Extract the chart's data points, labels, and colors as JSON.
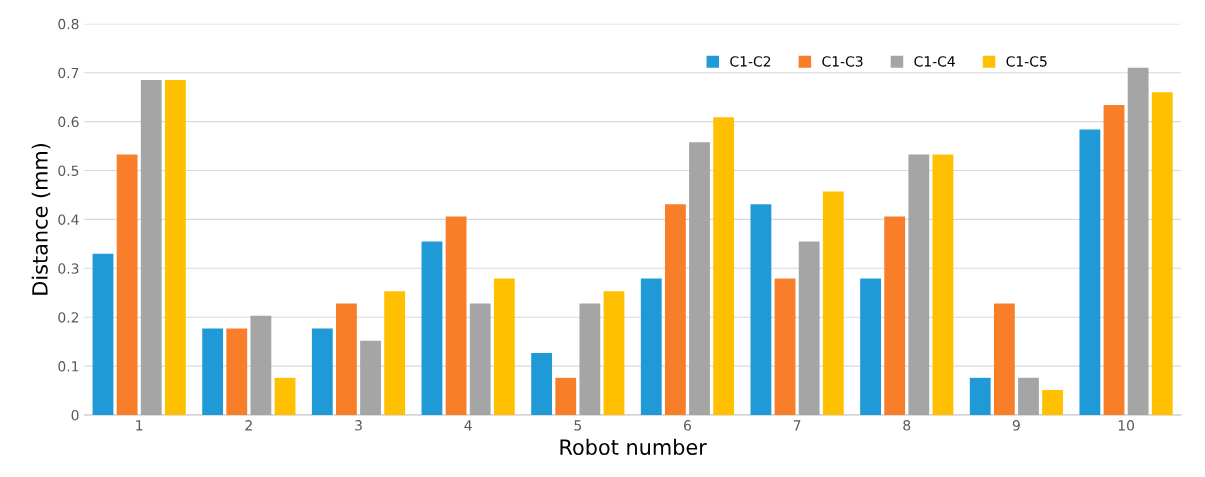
{
  "chart_data": {
    "type": "bar",
    "xlabel": "Robot number",
    "ylabel": "Distance (mm)",
    "categories": [
      "1",
      "2",
      "3",
      "4",
      "5",
      "6",
      "7",
      "8",
      "9",
      "10"
    ],
    "series": [
      {
        "name": "C1-C2",
        "color": "#1f9ad6",
        "values": [
          0.33,
          0.177,
          0.177,
          0.355,
          0.127,
          0.279,
          0.431,
          0.279,
          0.076,
          0.584
        ]
      },
      {
        "name": "C1-C3",
        "color": "#f97e2a",
        "values": [
          0.533,
          0.177,
          0.228,
          0.406,
          0.076,
          0.431,
          0.279,
          0.406,
          0.228,
          0.634
        ]
      },
      {
        "name": "C1-C4",
        "color": "#a5a5a5",
        "values": [
          0.685,
          0.203,
          0.152,
          0.228,
          0.228,
          0.558,
          0.355,
          0.533,
          0.076,
          0.71
        ]
      },
      {
        "name": "C1-C5",
        "color": "#fec000",
        "values": [
          0.685,
          0.076,
          0.253,
          0.279,
          0.253,
          0.609,
          0.457,
          0.533,
          0.051,
          0.66
        ]
      }
    ],
    "ylim": [
      0,
      0.8
    ],
    "yticks": [
      {
        "value": 0,
        "label": "0"
      },
      0.1,
      0.2,
      0.3,
      0.4,
      0.5,
      0.6,
      0.7,
      0.8
    ],
    "grid": "y",
    "legend": "top right"
  }
}
